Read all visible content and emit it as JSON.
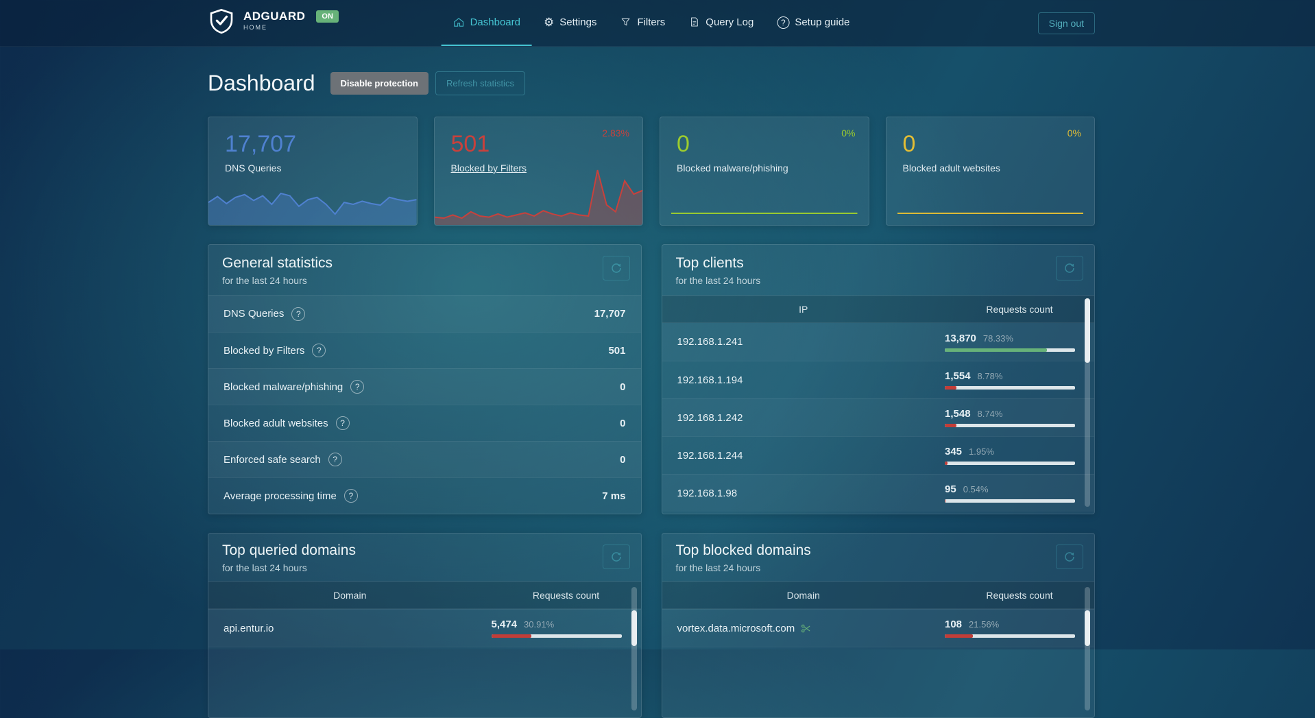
{
  "colors": {
    "accent_teal": "#45c4d2",
    "on_badge_green": "#67b279",
    "bar_green": "#67b279",
    "bar_red": "#c23d38",
    "blue": "#4f81d0",
    "red": "#c8413c",
    "green": "#9ccc2e",
    "yellow": "#e2bd35"
  },
  "icons": {
    "logo": "shield-check-icon",
    "nav": [
      "home-icon",
      "gear-icon",
      "filter-funnel-icon",
      "document-icon",
      "question-circle-icon"
    ],
    "panel_refresh": "refresh-icon",
    "row_help": "question-circle-icon",
    "blocked_domain": "scissors-filter-icon"
  },
  "navbar": {
    "brand": {
      "name": "ADGUARD",
      "sub": "HOME",
      "status": "ON"
    },
    "items": [
      {
        "label": "Dashboard",
        "active": true
      },
      {
        "label": "Settings",
        "active": false
      },
      {
        "label": "Filters",
        "active": false
      },
      {
        "label": "Query Log",
        "active": false
      },
      {
        "label": "Setup guide",
        "active": false
      }
    ],
    "signout_label": "Sign out"
  },
  "page": {
    "title": "Dashboard",
    "disable_protection_label": "Disable protection",
    "refresh_statistics_label": "Refresh statistics"
  },
  "stat_cards": [
    {
      "value": "17,707",
      "label": "DNS Queries",
      "percent": "",
      "color": "#4f81d0",
      "spark": [
        0.55,
        0.7,
        0.52,
        0.68,
        0.75,
        0.6,
        0.72,
        0.5,
        0.78,
        0.72,
        0.45,
        0.62,
        0.68,
        0.5,
        0.25,
        0.55,
        0.5,
        0.58,
        0.52,
        0.48,
        0.68,
        0.62,
        0.58,
        0.62
      ]
    },
    {
      "value": "501",
      "label": "Blocked by Filters",
      "percent": "2.83%",
      "color": "#c8413c",
      "spark": [
        0.12,
        0.1,
        0.16,
        0.1,
        0.22,
        0.14,
        0.12,
        0.18,
        0.12,
        0.16,
        0.2,
        0.14,
        0.24,
        0.18,
        0.14,
        0.2,
        0.16,
        0.14,
        1.0,
        0.35,
        0.22,
        0.8,
        0.55,
        0.62
      ]
    },
    {
      "value": "0",
      "label": "Blocked malware/phishing",
      "percent": "0%",
      "color": "#9ccc2e",
      "spark": [
        0,
        0,
        0,
        0,
        0,
        0,
        0,
        0,
        0,
        0
      ]
    },
    {
      "value": "0",
      "label": "Blocked adult websites",
      "percent": "0%",
      "color": "#e2bd35",
      "spark": [
        0,
        0,
        0,
        0,
        0,
        0,
        0,
        0,
        0,
        0
      ]
    }
  ],
  "general_stats": {
    "title": "General statistics",
    "subtitle": "for the last 24 hours",
    "rows": [
      {
        "label": "DNS Queries",
        "value": "17,707"
      },
      {
        "label": "Blocked by Filters",
        "value": "501"
      },
      {
        "label": "Blocked malware/phishing",
        "value": "0"
      },
      {
        "label": "Blocked adult websites",
        "value": "0"
      },
      {
        "label": "Enforced safe search",
        "value": "0"
      },
      {
        "label": "Average processing time",
        "value": "7 ms"
      }
    ]
  },
  "top_clients": {
    "title": "Top clients",
    "subtitle": "for the last 24 hours",
    "columns": [
      "IP",
      "Requests count"
    ],
    "rows": [
      {
        "ip": "192.168.1.241",
        "count": "13,870",
        "percent": "78.33%",
        "bar": 78.33,
        "bar_color": "#67b279"
      },
      {
        "ip": "192.168.1.194",
        "count": "1,554",
        "percent": "8.78%",
        "bar": 8.78,
        "bar_color": "#c23d38"
      },
      {
        "ip": "192.168.1.242",
        "count": "1,548",
        "percent": "8.74%",
        "bar": 8.74,
        "bar_color": "#c23d38"
      },
      {
        "ip": "192.168.1.244",
        "count": "345",
        "percent": "1.95%",
        "bar": 1.95,
        "bar_color": "#c23d38"
      },
      {
        "ip": "192.168.1.98",
        "count": "95",
        "percent": "0.54%",
        "bar": 0.54,
        "bar_color": "#c23d38"
      }
    ]
  },
  "top_queried": {
    "title": "Top queried domains",
    "subtitle": "for the last 24 hours",
    "columns": [
      "Domain",
      "Requests count"
    ],
    "rows": [
      {
        "domain": "api.entur.io",
        "count": "5,474",
        "percent": "30.91%",
        "bar": 30.91,
        "bar_color": "#c23d38"
      }
    ]
  },
  "top_blocked": {
    "title": "Top blocked domains",
    "subtitle": "for the last 24 hours",
    "columns": [
      "Domain",
      "Requests count"
    ],
    "rows": [
      {
        "domain": "vortex.data.microsoft.com",
        "count": "108",
        "percent": "21.56%",
        "bar": 21.56,
        "bar_color": "#c23d38"
      }
    ]
  }
}
